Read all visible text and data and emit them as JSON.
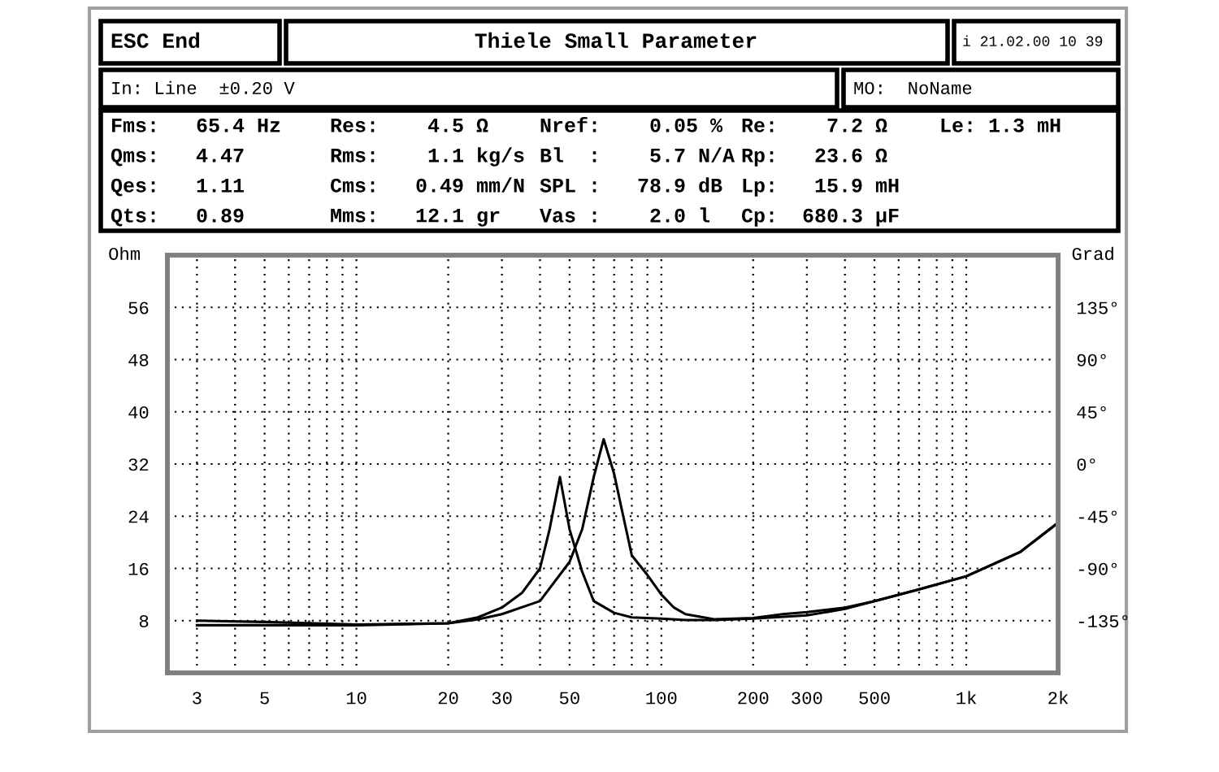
{
  "chart_data": {
    "type": "line",
    "title": "Thiele Small Parameter",
    "annotations": [
      "ESC End",
      "i 21.02.00 10 39",
      "In: Line  ±0.20 V",
      "MO:  NoName",
      "Fms:   65.4 Hz",
      "Qms:   4.47",
      "Qes:   1.11",
      "Qts:   0.89",
      "Res:    4.5 Ω",
      "Rms:    1.1 kg/s",
      "Cms:   0.49 mm/N",
      "Mms:   12.1 gr",
      "Nref:    0.05 %",
      "Bl  :    5.7 N/A",
      "SPL :   78.9 dB",
      "Vas :    2.0 l",
      "Re:    7.2 Ω",
      "Rp:   23.6 Ω",
      "Lp:   15.9 mH",
      "Cp:  680.3 µF",
      "Le: 1.3 mH"
    ],
    "ylabel": "Ohm",
    "y2label": "Grad",
    "series": [
      {
        "color": "#000000",
        "x": [
          3,
          5,
          10,
          20,
          25,
          30,
          35,
          40,
          43,
          46.5,
          50,
          55,
          60,
          70,
          80,
          100,
          120,
          150,
          200,
          300,
          400,
          500,
          700,
          1000,
          1500,
          2000
        ],
        "values": [
          7.3,
          7.3,
          7.3,
          7.6,
          8.5,
          10,
          12.3,
          16,
          22,
          30,
          22,
          15.5,
          11,
          9.2,
          8.5,
          8.3,
          8.1,
          8.1,
          8.3,
          8.8,
          9.8,
          11,
          12.8,
          14.8,
          18.5,
          23
        ]
      },
      {
        "color": "#000000",
        "x": [
          3,
          5,
          10,
          20,
          25,
          30,
          40,
          50,
          55,
          60,
          64.7,
          70,
          75,
          80,
          90,
          100,
          110,
          120,
          150,
          200,
          250,
          300,
          400,
          500,
          700,
          1000,
          1500,
          2000
        ],
        "values": [
          8,
          7.8,
          7.4,
          7.6,
          8.2,
          9,
          11,
          17,
          22,
          30,
          35.8,
          30.5,
          24,
          18,
          15,
          12,
          10,
          9,
          8.2,
          8.4,
          9,
          9.3,
          10,
          11,
          12.8,
          14.8,
          18.5,
          23
        ]
      }
    ],
    "xlim": [
      2.4,
      2000
    ],
    "xticks": [
      3,
      {
        "value": 4,
        "label": null
      },
      5,
      {
        "value": 6,
        "label": null
      },
      {
        "value": 7,
        "label": null
      },
      {
        "value": 8,
        "label": null
      },
      {
        "value": 9,
        "label": null
      },
      10,
      20,
      30,
      {
        "value": 40,
        "label": null
      },
      50,
      {
        "value": 60,
        "label": null
      },
      {
        "value": 70,
        "label": null
      },
      {
        "value": 80,
        "label": null
      },
      {
        "value": 90,
        "label": null
      },
      100,
      200,
      300,
      {
        "value": 400,
        "label": null
      },
      500,
      {
        "value": 600,
        "label": null
      },
      {
        "value": 700,
        "label": null
      },
      {
        "value": 800,
        "label": null
      },
      {
        "value": 900,
        "label": null
      },
      {
        "value": 1000,
        "label": "1k"
      },
      {
        "value": 2000,
        "label": "2k"
      }
    ],
    "ylim": [
      0,
      64
    ],
    "yticks": [
      8,
      16,
      24,
      32,
      40,
      48,
      56
    ],
    "y2lim": [
      -180,
      180
    ],
    "y2ticks": [
      {
        "value": -135,
        "label": "-135°"
      },
      {
        "value": -90,
        "label": "-90°"
      },
      {
        "value": -45,
        "label": "-45°"
      },
      {
        "value": 0,
        "label": "0°"
      },
      {
        "value": 45,
        "label": "45°"
      },
      {
        "value": 90,
        "label": "90°"
      },
      {
        "value": 135,
        "label": "135°"
      }
    ],
    "log": "x",
    "grid": true,
    "legend": false,
    "line_style": "solid",
    "marker": "none"
  }
}
